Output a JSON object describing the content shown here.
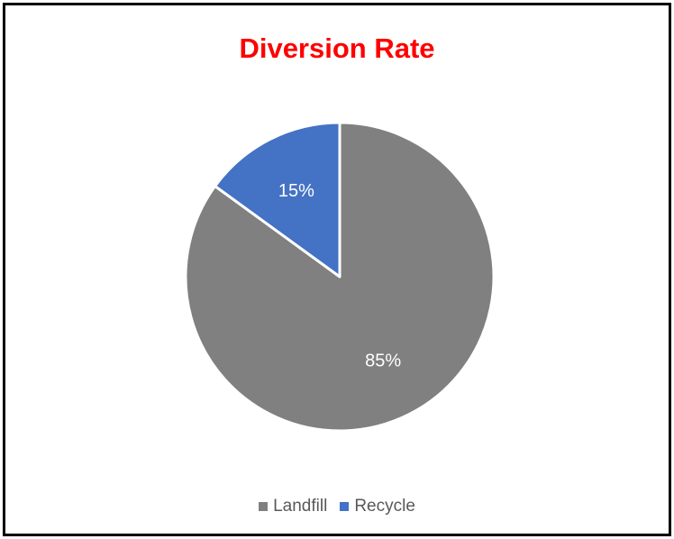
{
  "chart_data": {
    "type": "pie",
    "title": "Diversion Rate",
    "categories": [
      "Landfill",
      "Recycle"
    ],
    "values": [
      85,
      15
    ],
    "data_labels": [
      "85%",
      "15%"
    ],
    "colors": [
      "#808080",
      "#4472C4"
    ],
    "title_color": "#FF0000",
    "legend_position": "bottom"
  }
}
